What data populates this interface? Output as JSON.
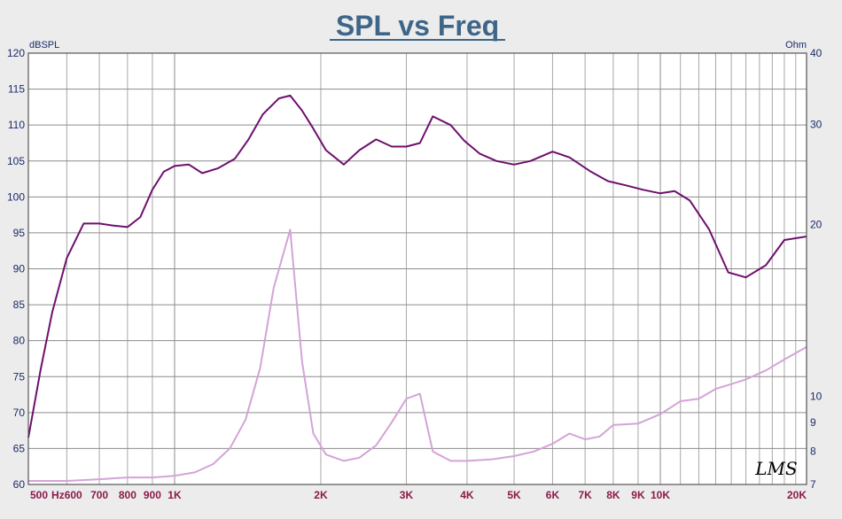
{
  "chart_data": {
    "type": "line",
    "title": "SPL vs Freq",
    "y_left_label": "dBSPL",
    "y_right_label": "Ohm",
    "x_scale": "log",
    "xlim": [
      500,
      20000
    ],
    "ylim_left": [
      60,
      120
    ],
    "ylim_right": [
      7,
      40
    ],
    "y_right_scale": "log",
    "grid": true,
    "x_ticks": [
      {
        "value": 500,
        "label": "500"
      },
      {
        "value": 600,
        "label": "Hz600"
      },
      {
        "value": 700,
        "label": "700"
      },
      {
        "value": 800,
        "label": "800"
      },
      {
        "value": 900,
        "label": "900"
      },
      {
        "value": 1000,
        "label": "1K"
      },
      {
        "value": 2000,
        "label": "2K"
      },
      {
        "value": 3000,
        "label": "3K"
      },
      {
        "value": 4000,
        "label": "4K"
      },
      {
        "value": 5000,
        "label": "5K"
      },
      {
        "value": 6000,
        "label": "6K"
      },
      {
        "value": 7000,
        "label": "7K"
      },
      {
        "value": 8000,
        "label": "8K"
      },
      {
        "value": 9000,
        "label": "9K"
      },
      {
        "value": 10000,
        "label": "10K"
      },
      {
        "value": 20000,
        "label": "20K"
      }
    ],
    "y_left_ticks": [
      "60",
      "65",
      "70",
      "75",
      "80",
      "85",
      "90",
      "95",
      "100",
      "105",
      "110",
      "115",
      "120"
    ],
    "y_right_ticks": [
      {
        "value": 7,
        "label": "7"
      },
      {
        "value": 8,
        "label": "8"
      },
      {
        "value": 9,
        "label": "9"
      },
      {
        "value": 10,
        "label": "10"
      },
      {
        "value": 20,
        "label": "20"
      },
      {
        "value": 30,
        "label": "30"
      },
      {
        "value": 40,
        "label": "40"
      }
    ],
    "series": [
      {
        "axis": "left",
        "color": "#6e0f6e",
        "x": [
          500,
          530,
          560,
          600,
          650,
          700,
          750,
          800,
          850,
          900,
          950,
          1000,
          1070,
          1140,
          1230,
          1330,
          1420,
          1520,
          1640,
          1730,
          1830,
          1930,
          2050,
          2230,
          2400,
          2600,
          2800,
          3000,
          3200,
          3400,
          3700,
          3950,
          4250,
          4600,
          5000,
          5400,
          6000,
          6500,
          7200,
          7800,
          8500,
          9200,
          10000,
          10700,
          11500,
          12600,
          13800,
          15000,
          16500,
          18000,
          20000
        ],
        "values": [
          66.5,
          76,
          84,
          91.5,
          96.3,
          96.3,
          96,
          95.8,
          97.2,
          101,
          103.5,
          104.3,
          104.5,
          103.3,
          104,
          105.3,
          108,
          111.5,
          113.7,
          114.1,
          112,
          109.5,
          106.5,
          104.5,
          106.5,
          108,
          107,
          107,
          107.5,
          111.2,
          110,
          107.8,
          106,
          105,
          104.5,
          105,
          106.3,
          105.5,
          103.5,
          102.2,
          101.6,
          101,
          100.5,
          100.8,
          99.5,
          95.5,
          89.5,
          88.8,
          90.5,
          94,
          94.5
        ]
      },
      {
        "axis": "right",
        "color": "#d4a3d8",
        "x": [
          500,
          600,
          700,
          800,
          900,
          1000,
          1100,
          1200,
          1300,
          1400,
          1500,
          1600,
          1730,
          1830,
          1930,
          2050,
          2230,
          2400,
          2600,
          2800,
          3000,
          3200,
          3400,
          3700,
          4000,
          4500,
          5000,
          5500,
          6000,
          6500,
          7000,
          7500,
          8000,
          9000,
          10000,
          11000,
          12000,
          13000,
          14000,
          15000,
          16500,
          18000,
          20000
        ],
        "values": [
          7.1,
          7.1,
          7.15,
          7.2,
          7.2,
          7.25,
          7.35,
          7.6,
          8.1,
          9.1,
          11.2,
          15.5,
          19.6,
          11.5,
          8.6,
          7.9,
          7.7,
          7.8,
          8.2,
          9.0,
          9.9,
          10.1,
          8.0,
          7.7,
          7.7,
          7.75,
          7.85,
          8.0,
          8.25,
          8.6,
          8.4,
          8.5,
          8.9,
          8.95,
          9.3,
          9.8,
          9.9,
          10.3,
          10.5,
          10.7,
          11.1,
          11.6,
          12.2
        ]
      }
    ]
  },
  "watermark": "LMS",
  "colors": {
    "background": "#ececec",
    "plot_background": "#ffffff",
    "title": "#3e6689",
    "axis_text": "#1b2a6b",
    "x_tick_text": "#8b1a4a"
  }
}
